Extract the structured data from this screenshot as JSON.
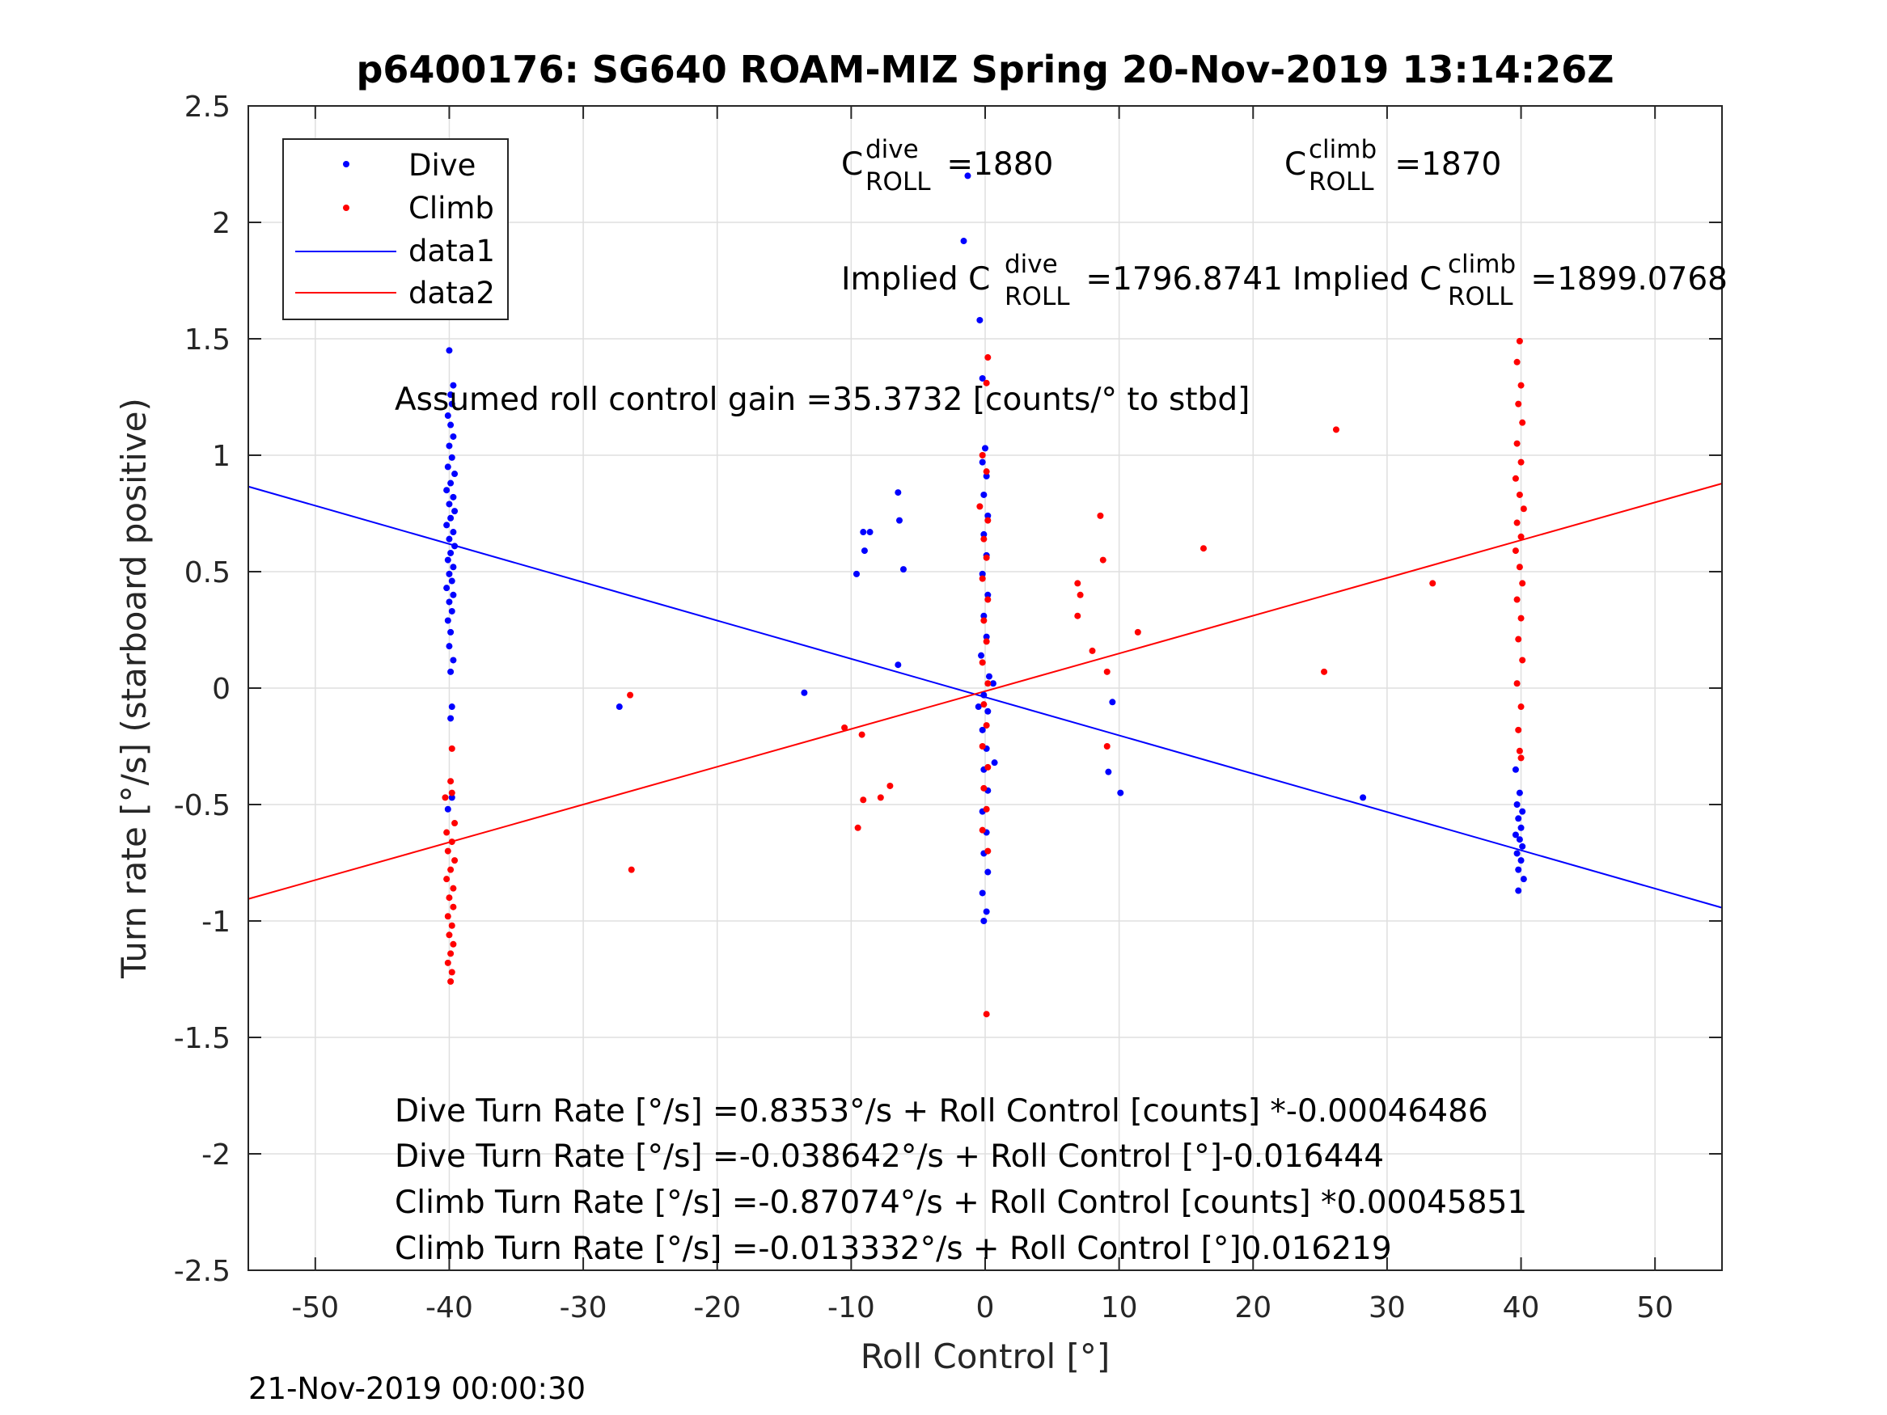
{
  "chart_data": {
    "type": "scatter",
    "title": "p6400176: SG640 ROAM-MIZ Spring 20-Nov-2019 13:14:26Z",
    "xlabel": "Roll Control [°]",
    "ylabel": "Turn rate [°/s] (starboard positive)",
    "xlim": [
      -55,
      55
    ],
    "ylim": [
      -2.5,
      2.5
    ],
    "grid": true,
    "legend_position": "top-left",
    "x_ticks": [
      -50,
      -40,
      -30,
      -20,
      -10,
      0,
      10,
      20,
      30,
      40,
      50
    ],
    "x_tick_labels": [
      "-50",
      "-40",
      "-30",
      "-20",
      "-10",
      "0",
      "10",
      "20",
      "30",
      "40",
      "50"
    ],
    "y_ticks": [
      2.5,
      2,
      1.5,
      1,
      0.5,
      0,
      -0.5,
      -1,
      -1.5,
      -2,
      -2.5
    ],
    "y_tick_labels": [
      "2.5",
      "2",
      "1.5",
      "1",
      "0.5",
      "0",
      "-0.5",
      "-1",
      "-1.5",
      "-2",
      "-2.5"
    ],
    "legend": [
      "Dive",
      "Climb",
      "data1",
      "data2"
    ],
    "colors": {
      "dive": "#0000ff",
      "climb": "#ff0000",
      "axis": "#262626",
      "grid": "#dfdfdf"
    },
    "series": [
      {
        "name": "Dive",
        "style": "points",
        "color": "#0000ff",
        "points": [
          [
            -40,
            1.45
          ],
          [
            -39.7,
            1.3
          ],
          [
            -39.9,
            1.26
          ],
          [
            -39.8,
            1.22
          ],
          [
            -40.1,
            1.17
          ],
          [
            -39.9,
            1.13
          ],
          [
            -39.7,
            1.08
          ],
          [
            -40.0,
            1.04
          ],
          [
            -39.8,
            0.99
          ],
          [
            -40.1,
            0.95
          ],
          [
            -39.6,
            0.92
          ],
          [
            -39.9,
            0.88
          ],
          [
            -40.2,
            0.85
          ],
          [
            -39.7,
            0.82
          ],
          [
            -40.0,
            0.79
          ],
          [
            -39.6,
            0.76
          ],
          [
            -39.9,
            0.73
          ],
          [
            -40.2,
            0.7
          ],
          [
            -39.7,
            0.67
          ],
          [
            -40.0,
            0.64
          ],
          [
            -39.6,
            0.61
          ],
          [
            -39.9,
            0.58
          ],
          [
            -40.1,
            0.55
          ],
          [
            -39.7,
            0.52
          ],
          [
            -40.0,
            0.49
          ],
          [
            -39.8,
            0.46
          ],
          [
            -40.2,
            0.43
          ],
          [
            -39.7,
            0.4
          ],
          [
            -40.0,
            0.37
          ],
          [
            -39.8,
            0.33
          ],
          [
            -40.1,
            0.29
          ],
          [
            -39.9,
            0.24
          ],
          [
            -40.0,
            0.18
          ],
          [
            -39.7,
            0.12
          ],
          [
            -39.9,
            0.07
          ],
          [
            -39.8,
            -0.08
          ],
          [
            -39.9,
            -0.13
          ],
          [
            -40.1,
            -0.52
          ],
          [
            -39.8,
            -0.47
          ],
          [
            -1.3,
            2.2
          ],
          [
            -1.6,
            1.92
          ],
          [
            -0.4,
            1.58
          ],
          [
            -0.2,
            1.33
          ],
          [
            -6.5,
            0.84
          ],
          [
            -6.4,
            0.72
          ],
          [
            -8.6,
            0.67
          ],
          [
            -9.1,
            0.67
          ],
          [
            -9.0,
            0.59
          ],
          [
            -6.1,
            0.51
          ],
          [
            -9.6,
            0.49
          ],
          [
            -6.5,
            0.1
          ],
          [
            -13.5,
            -0.02
          ],
          [
            -27.3,
            -0.08
          ],
          [
            9.5,
            -0.06
          ],
          [
            9.2,
            -0.36
          ],
          [
            10.1,
            -0.45
          ],
          [
            28.2,
            -0.47
          ],
          [
            0,
            1.03
          ],
          [
            -0.2,
            0.97
          ],
          [
            0.1,
            0.91
          ],
          [
            -0.1,
            0.83
          ],
          [
            0.2,
            0.74
          ],
          [
            -0.1,
            0.66
          ],
          [
            0.1,
            0.57
          ],
          [
            -0.2,
            0.49
          ],
          [
            0.2,
            0.4
          ],
          [
            -0.1,
            0.31
          ],
          [
            0.1,
            0.22
          ],
          [
            -0.3,
            0.14
          ],
          [
            0.3,
            0.05
          ],
          [
            -0.1,
            -0.03
          ],
          [
            0.2,
            -0.1
          ],
          [
            -0.2,
            -0.18
          ],
          [
            0.1,
            -0.26
          ],
          [
            -0.1,
            -0.35
          ],
          [
            0.2,
            -0.44
          ],
          [
            -0.2,
            -0.53
          ],
          [
            0.1,
            -0.62
          ],
          [
            -0.1,
            -0.71
          ],
          [
            0.2,
            -0.79
          ],
          [
            -0.2,
            -0.88
          ],
          [
            0.1,
            -0.96
          ],
          [
            -0.1,
            -1.0
          ],
          [
            0.7,
            -0.32
          ],
          [
            0.6,
            0.02
          ],
          [
            -0.5,
            -0.08
          ],
          [
            39.6,
            -0.35
          ],
          [
            39.9,
            -0.45
          ],
          [
            39.7,
            -0.5
          ],
          [
            40.1,
            -0.53
          ],
          [
            39.8,
            -0.56
          ],
          [
            40.0,
            -0.6
          ],
          [
            39.6,
            -0.63
          ],
          [
            39.9,
            -0.65
          ],
          [
            40.1,
            -0.68
          ],
          [
            39.7,
            -0.71
          ],
          [
            40.0,
            -0.74
          ],
          [
            39.8,
            -0.78
          ],
          [
            40.2,
            -0.82
          ],
          [
            39.8,
            -0.87
          ]
        ]
      },
      {
        "name": "Climb",
        "style": "points",
        "color": "#ff0000",
        "points": [
          [
            -40.3,
            -0.47
          ],
          [
            -39.8,
            -0.45
          ],
          [
            -39.8,
            -0.26
          ],
          [
            -39.9,
            -0.4
          ],
          [
            -39.6,
            -0.58
          ],
          [
            -40.2,
            -0.62
          ],
          [
            -39.8,
            -0.66
          ],
          [
            -40.1,
            -0.7
          ],
          [
            -39.6,
            -0.74
          ],
          [
            -39.9,
            -0.78
          ],
          [
            -40.2,
            -0.82
          ],
          [
            -39.7,
            -0.86
          ],
          [
            -40.0,
            -0.9
          ],
          [
            -39.7,
            -0.94
          ],
          [
            -40.1,
            -0.98
          ],
          [
            -39.8,
            -1.02
          ],
          [
            -40.0,
            -1.06
          ],
          [
            -39.7,
            -1.1
          ],
          [
            -39.9,
            -1.14
          ],
          [
            -40.1,
            -1.18
          ],
          [
            -39.8,
            -1.22
          ],
          [
            -39.9,
            -1.26
          ],
          [
            0.2,
            1.42
          ],
          [
            0.1,
            1.31
          ],
          [
            -0.2,
            1.0
          ],
          [
            0.1,
            0.93
          ],
          [
            -0.4,
            0.78
          ],
          [
            0.2,
            0.72
          ],
          [
            -0.1,
            0.64
          ],
          [
            0.1,
            0.56
          ],
          [
            -0.2,
            0.47
          ],
          [
            0.2,
            0.38
          ],
          [
            -0.1,
            0.29
          ],
          [
            0.1,
            0.2
          ],
          [
            -0.2,
            0.11
          ],
          [
            0.2,
            0.02
          ],
          [
            -0.1,
            -0.07
          ],
          [
            0.1,
            -0.16
          ],
          [
            -0.2,
            -0.25
          ],
          [
            0.2,
            -0.34
          ],
          [
            -0.1,
            -0.43
          ],
          [
            0.1,
            -0.52
          ],
          [
            -0.2,
            -0.61
          ],
          [
            0.2,
            -0.7
          ],
          [
            0.1,
            -1.4
          ],
          [
            -26.5,
            -0.03
          ],
          [
            -26.4,
            -0.78
          ],
          [
            -10.5,
            -0.17
          ],
          [
            -9.2,
            -0.2
          ],
          [
            -9.1,
            -0.48
          ],
          [
            -7.8,
            -0.47
          ],
          [
            -7.1,
            -0.42
          ],
          [
            -9.5,
            -0.6
          ],
          [
            6.9,
            0.45
          ],
          [
            7.1,
            0.4
          ],
          [
            6.9,
            0.31
          ],
          [
            8.6,
            0.74
          ],
          [
            8.8,
            0.55
          ],
          [
            8.0,
            0.16
          ],
          [
            9.1,
            0.07
          ],
          [
            11.4,
            0.24
          ],
          [
            9.1,
            -0.25
          ],
          [
            16.3,
            0.6
          ],
          [
            25.3,
            0.07
          ],
          [
            26.2,
            1.11
          ],
          [
            33.4,
            0.45
          ],
          [
            39.9,
            1.49
          ],
          [
            39.7,
            1.4
          ],
          [
            40.0,
            1.3
          ],
          [
            39.8,
            1.22
          ],
          [
            40.1,
            1.14
          ],
          [
            39.7,
            1.05
          ],
          [
            40.0,
            0.97
          ],
          [
            39.6,
            0.9
          ],
          [
            39.9,
            0.83
          ],
          [
            40.2,
            0.77
          ],
          [
            39.7,
            0.71
          ],
          [
            40.0,
            0.65
          ],
          [
            39.6,
            0.59
          ],
          [
            39.9,
            0.52
          ],
          [
            40.1,
            0.45
          ],
          [
            39.7,
            0.38
          ],
          [
            40.0,
            0.3
          ],
          [
            39.8,
            0.21
          ],
          [
            40.1,
            0.12
          ],
          [
            39.7,
            0.02
          ],
          [
            40.0,
            -0.08
          ],
          [
            39.8,
            -0.18
          ],
          [
            39.9,
            -0.27
          ],
          [
            40.0,
            -0.3
          ]
        ]
      },
      {
        "name": "data1",
        "style": "line",
        "color": "#0000ff",
        "x": [
          -55,
          55
        ],
        "y": [
          0.8655,
          -0.9431
        ]
      },
      {
        "name": "data2",
        "style": "line",
        "color": "#ff0000",
        "x": [
          -55,
          55
        ],
        "y": [
          -0.9054,
          0.8785
        ]
      }
    ],
    "annotations": {
      "c_dive": {
        "prefix": "C",
        "sup": "dive",
        "sub": "ROLL",
        "suffix": " =1880"
      },
      "c_climb": {
        "prefix": "C",
        "sup": "climb",
        "sub": "ROLL",
        "suffix": " =1870"
      },
      "implied_dive": {
        "prefix": "Implied C",
        "sup": "dive",
        "sub": "ROLL",
        "suffix": " =1796.8741"
      },
      "implied_climb": {
        "prefix": "Implied C",
        "sup": "climb",
        "sub": "ROLL",
        "suffix": " =1899.0768"
      },
      "gain": "Assumed roll control gain =35.3732 [counts/° to stbd]",
      "equations": [
        "Dive Turn Rate [°/s] =0.8353°/s + Roll Control [counts] *-0.00046486",
        "Dive Turn Rate [°/s] =-0.038642°/s + Roll Control [°]-0.016444",
        "Climb Turn Rate [°/s] =-0.87074°/s + Roll Control [counts] *0.00045851",
        "Climb Turn Rate [°/s] =-0.013332°/s + Roll Control [°]0.016219"
      ]
    }
  },
  "footer": {
    "timestamp": "21-Nov-2019 00:00:30"
  }
}
